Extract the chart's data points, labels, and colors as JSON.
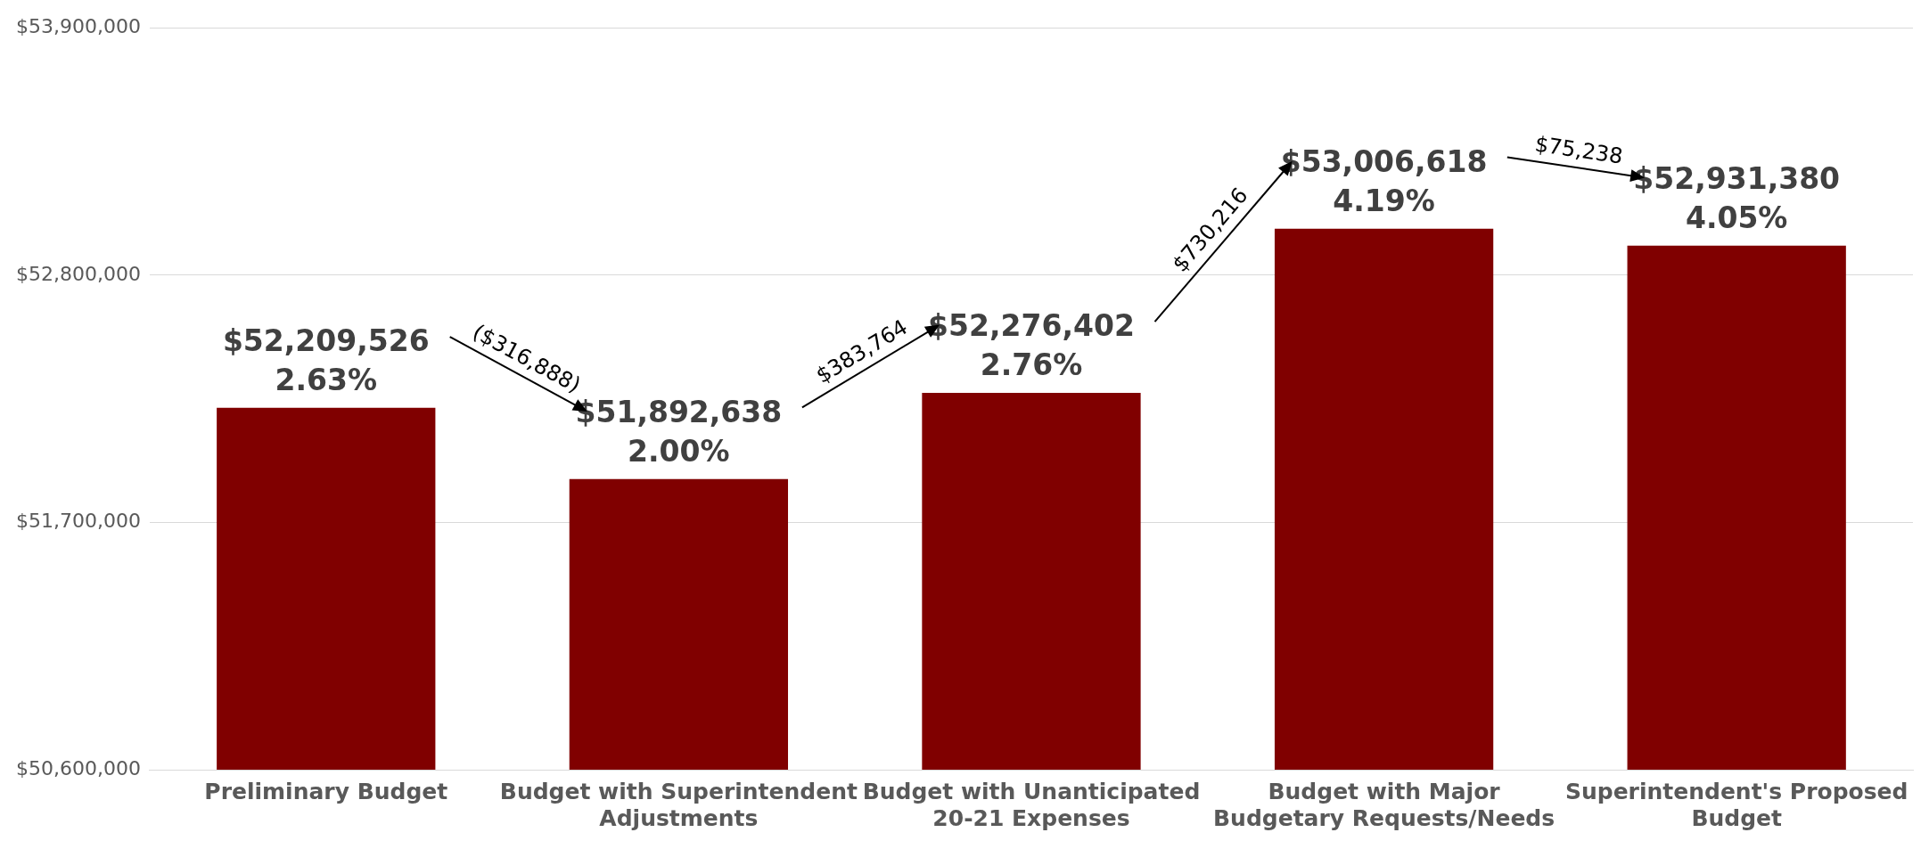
{
  "chart_data": {
    "type": "bar",
    "categories": [
      "Preliminary Budget",
      "Budget with Superintendent Adjustments",
      "Budget with Unanticipated 20-21 Expenses",
      "Budget with Major Budgetary Requests/Needs",
      "Superintendent's Proposed Budget"
    ],
    "values": [
      52209526,
      51892638,
      52276402,
      53006618,
      52931380
    ],
    "value_labels": [
      "$52,209,526\n2.63%",
      "$51,892,638\n2.00%",
      "$52,276,402\n2.76%",
      "$53,006,618\n4.19%",
      "$52,931,380\n4.05%"
    ],
    "color": "#800000",
    "ylim": [
      50600000,
      53900000
    ],
    "yticks": [
      {
        "value": 50600000,
        "label": "$50,600,000"
      },
      {
        "value": 51700000,
        "label": "$51,700,000"
      },
      {
        "value": 52800000,
        "label": "$52,800,000"
      },
      {
        "value": 53900000,
        "label": "$53,900,000"
      }
    ],
    "grid": "y",
    "legend": false,
    "annotations": [
      "($316,888)",
      "$383,764",
      "$730,216",
      "$75,238"
    ]
  }
}
